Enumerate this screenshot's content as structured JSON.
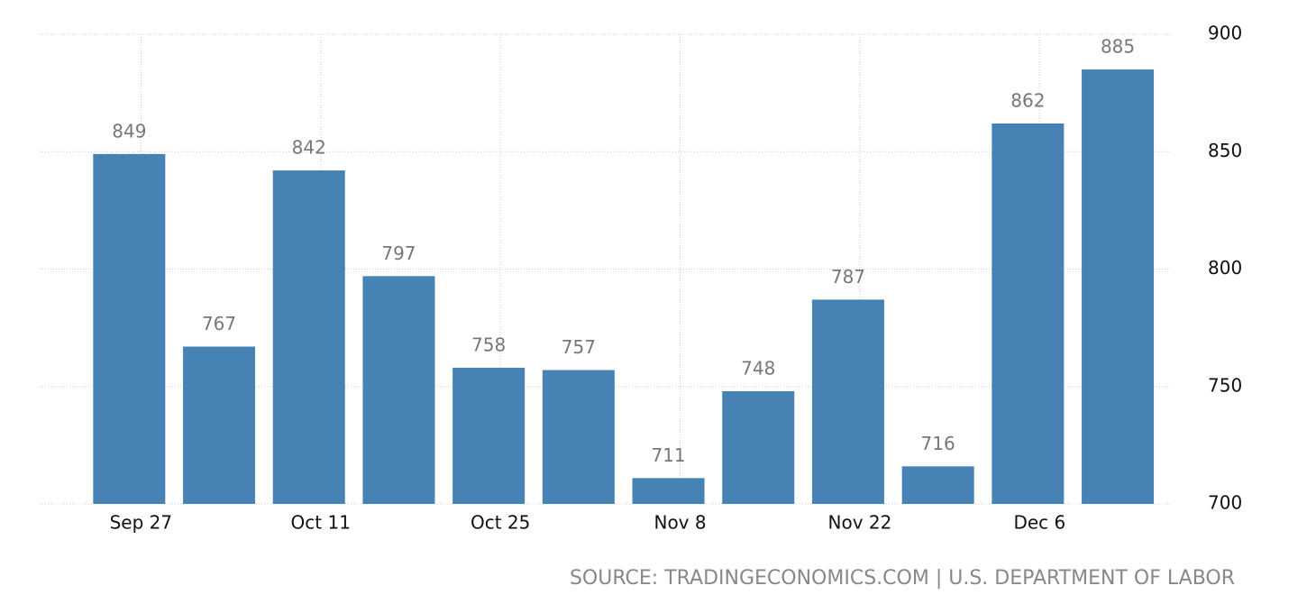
{
  "chart_data": {
    "type": "bar",
    "categories": [
      "Sep 27",
      null,
      "Oct 11",
      null,
      "Oct 25",
      null,
      "Nov 8",
      null,
      "Nov 22",
      null,
      "Dec 6",
      null
    ],
    "values": [
      849,
      767,
      842,
      797,
      758,
      757,
      711,
      748,
      787,
      716,
      862,
      885
    ],
    "color": "#4682b4",
    "ylim": [
      700,
      900
    ],
    "yticks": [
      700,
      750,
      800,
      850,
      900
    ],
    "grid": true,
    "y_axis_side": "right",
    "source": "SOURCE: TRADINGECONOMICS.COM | U.S. DEPARTMENT OF LABOR"
  }
}
